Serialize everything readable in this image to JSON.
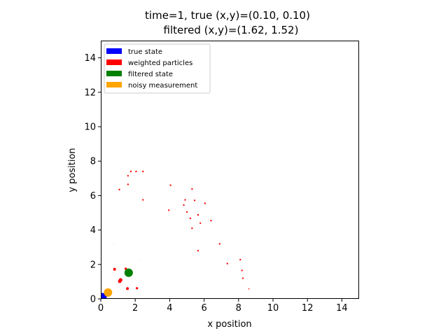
{
  "chart_data": {
    "type": "scatter",
    "title_lines": [
      "time=1, true (x,y)=(0.10, 0.10)",
      "filtered (x,y)=(1.62, 1.52)"
    ],
    "xlabel": "x position",
    "ylabel": "y position",
    "xlim": [
      0,
      15
    ],
    "ylim": [
      0,
      15
    ],
    "xticks": [
      "0",
      "2",
      "4",
      "6",
      "8",
      "10",
      "12",
      "14"
    ],
    "yticks": [
      "0",
      "2",
      "4",
      "6",
      "8",
      "10",
      "12",
      "14"
    ],
    "grid": false,
    "legend": {
      "location": "upper-left",
      "entries": [
        {
          "label": "true state",
          "color": "#0000ff"
        },
        {
          "label": "weighted particles",
          "color": "#ff0000"
        },
        {
          "label": "filtered state",
          "color": "#008000"
        },
        {
          "label": "noisy measurement",
          "color": "#ffa500"
        }
      ]
    },
    "true_state": {
      "x": 0.1,
      "y": 0.1,
      "color": "#0000ff"
    },
    "filtered_state": {
      "x": 1.62,
      "y": 1.52,
      "color": "#008000"
    },
    "noisy_measurement": {
      "x": 0.42,
      "y": 0.37,
      "color": "#ffa500"
    },
    "particles_color": "#ff0000",
    "particles": [
      {
        "x": 1.15,
        "y": 1.1,
        "w": 1.0
      },
      {
        "x": 1.1,
        "y": 1.02,
        "w": 0.9
      },
      {
        "x": 0.8,
        "y": 1.72,
        "w": 0.6
      },
      {
        "x": 1.55,
        "y": 0.6,
        "w": 0.6
      },
      {
        "x": 1.45,
        "y": 1.75,
        "w": 0.45
      },
      {
        "x": 2.1,
        "y": 0.62,
        "w": 0.4
      },
      {
        "x": 1.12,
        "y": 1.05,
        "w": 0.7
      },
      {
        "x": 1.08,
        "y": 6.35,
        "w": 0.2
      },
      {
        "x": 1.58,
        "y": 7.15,
        "w": 0.2
      },
      {
        "x": 1.75,
        "y": 7.4,
        "w": 0.2
      },
      {
        "x": 2.05,
        "y": 7.4,
        "w": 0.2
      },
      {
        "x": 2.45,
        "y": 7.4,
        "w": 0.2
      },
      {
        "x": 1.58,
        "y": 6.65,
        "w": 0.2
      },
      {
        "x": 2.45,
        "y": 5.75,
        "w": 0.2
      },
      {
        "x": 4.05,
        "y": 6.6,
        "w": 0.2
      },
      {
        "x": 3.95,
        "y": 5.15,
        "w": 0.2
      },
      {
        "x": 4.9,
        "y": 5.75,
        "w": 0.2
      },
      {
        "x": 4.82,
        "y": 5.45,
        "w": 0.2
      },
      {
        "x": 5.3,
        "y": 6.38,
        "w": 0.2
      },
      {
        "x": 5.45,
        "y": 5.72,
        "w": 0.2
      },
      {
        "x": 6.05,
        "y": 5.55,
        "w": 0.2
      },
      {
        "x": 5.0,
        "y": 5.05,
        "w": 0.2
      },
      {
        "x": 5.2,
        "y": 4.68,
        "w": 0.2
      },
      {
        "x": 5.65,
        "y": 4.88,
        "w": 0.2
      },
      {
        "x": 5.78,
        "y": 4.4,
        "w": 0.2
      },
      {
        "x": 6.4,
        "y": 4.55,
        "w": 0.2
      },
      {
        "x": 5.3,
        "y": 4.1,
        "w": 0.2
      },
      {
        "x": 5.65,
        "y": 2.8,
        "w": 0.2
      },
      {
        "x": 6.9,
        "y": 3.2,
        "w": 0.2
      },
      {
        "x": 7.35,
        "y": 2.05,
        "w": 0.2
      },
      {
        "x": 8.1,
        "y": 2.28,
        "w": 0.2
      },
      {
        "x": 8.2,
        "y": 1.65,
        "w": 0.2
      },
      {
        "x": 8.25,
        "y": 1.2,
        "w": 0.2
      },
      {
        "x": 8.6,
        "y": 0.58,
        "w": 0.1
      },
      {
        "x": 0.75,
        "y": 3.2,
        "w": 0.05
      },
      {
        "x": 2.2,
        "y": 2.3,
        "w": 0.05
      }
    ]
  }
}
